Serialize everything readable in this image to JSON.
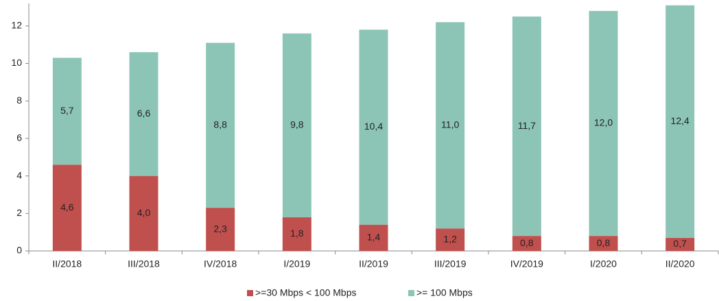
{
  "chart_data": {
    "type": "stacked_bar",
    "categories": [
      "II/2018",
      "III/2018",
      "IV/2018",
      "I/2019",
      "II/2019",
      "III/2019",
      "IV/2019",
      "I/2020",
      "II/2020"
    ],
    "series": [
      {
        "name": ">=30 Mbps < 100 Mbps",
        "color": "#c0504d",
        "values": [
          4.6,
          4.0,
          2.3,
          1.8,
          1.4,
          1.2,
          0.8,
          0.8,
          0.7
        ],
        "value_labels": [
          "4,6",
          "4,0",
          "2,3",
          "1,8",
          "1,4",
          "1,2",
          "0,8",
          "0,8",
          "0,7"
        ]
      },
      {
        "name": ">= 100 Mbps",
        "color": "#8cc5b6",
        "values": [
          5.7,
          6.6,
          8.8,
          9.8,
          10.4,
          11.0,
          11.7,
          12.0,
          12.4
        ],
        "value_labels": [
          "5,7",
          "6,6",
          "8,8",
          "9,8",
          "10,4",
          "11,0",
          "11,7",
          "12,0",
          "12,4"
        ]
      }
    ],
    "ylim": [
      0,
      13.2
    ],
    "yticks": [
      0,
      2,
      4,
      6,
      8,
      10,
      12
    ],
    "legend": "bottom"
  }
}
